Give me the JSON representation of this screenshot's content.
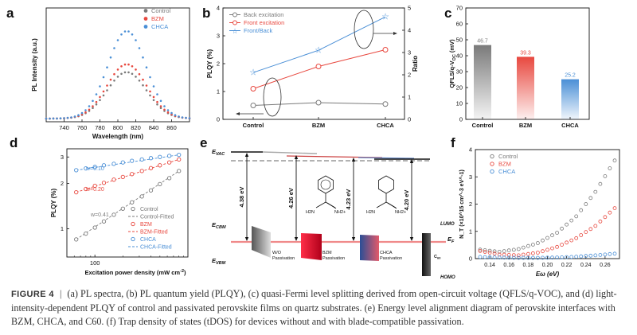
{
  "figure": {
    "label": "FIGURE 4",
    "caption": "(a) PL spectra, (b) PL quantum yield (PLQY), (c) quasi-Fermi level splitting derived from open-circuit voltage (QFLS/q-VOC), and (d) light-intensity-dependent PLQY of control and passivated perovskite films on quartz substrates. (e) Energy level alignment diagram of perovskite interfaces with BZM, CHCA, and C60. (f) Trap density of states (tDOS) for devices without and with blade-compatible passivation."
  },
  "colors": {
    "control": "#7a7a7a",
    "bzm": "#e8483f",
    "chca": "#4a8fd6"
  },
  "chart_data": [
    {
      "panel": "a",
      "type": "line",
      "title": "",
      "xlabel": "Wavelength (nm)",
      "ylabel": "PL Intensity (a.u.)",
      "xlim": [
        720,
        880
      ],
      "xticks": [
        740,
        760,
        780,
        800,
        820,
        840,
        860
      ],
      "legend": [
        "Control",
        "BZM",
        "CHCA"
      ],
      "series": [
        {
          "name": "Control",
          "peak_nm": 810,
          "peak_rel": 0.53,
          "fwhm_nm": 52
        },
        {
          "name": "BZM",
          "peak_nm": 810,
          "peak_rel": 0.62,
          "fwhm_nm": 52
        },
        {
          "name": "CHCA",
          "peak_nm": 810,
          "peak_rel": 1.0,
          "fwhm_nm": 50
        }
      ]
    },
    {
      "panel": "b",
      "type": "line",
      "categories": [
        "Control",
        "BZM",
        "CHCA"
      ],
      "ylabel": "PLQY (%)",
      "ylim": [
        0,
        4
      ],
      "yticks": [
        0,
        1,
        2,
        3,
        4
      ],
      "y2label": "Ratio",
      "y2lim": [
        0,
        5
      ],
      "y2ticks": [
        0,
        1,
        2,
        3,
        4,
        5
      ],
      "series": [
        {
          "name": "Back excitation",
          "axis": "left",
          "values": [
            0.5,
            0.6,
            0.55
          ]
        },
        {
          "name": "Front excitation",
          "axis": "left",
          "values": [
            1.1,
            1.9,
            2.5
          ]
        },
        {
          "name": "Front/Back",
          "axis": "right",
          "values": [
            2.1,
            3.1,
            4.6
          ]
        }
      ]
    },
    {
      "panel": "c",
      "type": "bar",
      "categories": [
        "Control",
        "BZM",
        "CHCA"
      ],
      "values": [
        46.7,
        39.3,
        25.2
      ],
      "labels": [
        "46.7",
        "39.3",
        "25.2"
      ],
      "ylabel_main": "QFLS/q-V",
      "ylabel_sub": "OC",
      "ylabel_unit": " (mV)",
      "ylim": [
        0,
        70
      ],
      "yticks": [
        0,
        10,
        20,
        30,
        40,
        50,
        60,
        70
      ]
    },
    {
      "panel": "d",
      "type": "scatter",
      "xlabel": "Excitation power density (mW cm",
      "xlabel_sup": "-2",
      "xlabel_end": ")",
      "ylabel": "PLQY (%)",
      "xscale": "log",
      "xlim": [
        50,
        1000
      ],
      "xticks": [
        100
      ],
      "xticklabels": [
        "100"
      ],
      "yscale": "log",
      "ylim": [
        0.65,
        3.4
      ],
      "yticks": [
        1,
        2,
        3
      ],
      "yticklabels": [
        "1",
        "2",
        "3"
      ],
      "annotations": [
        "w=0.10",
        "w=0.20",
        "w=0.41"
      ],
      "legend": [
        "Control",
        "Control-Fitted",
        "BZM",
        "BZM-Fitted",
        "CHCA",
        "CHCA-Fitted"
      ],
      "series": [
        {
          "name": "Control",
          "x": [
            63,
            80,
            100,
            125,
            160,
            200,
            250,
            320,
            400,
            500,
            630,
            800
          ],
          "values": [
            0.85,
            0.93,
            1.02,
            1.12,
            1.24,
            1.36,
            1.5,
            1.64,
            1.8,
            1.98,
            2.17,
            2.42
          ]
        },
        {
          "name": "BZM",
          "x": [
            63,
            80,
            100,
            125,
            160,
            200,
            250,
            320,
            400,
            500,
            630,
            800
          ],
          "values": [
            1.75,
            1.84,
            1.93,
            2.02,
            2.12,
            2.21,
            2.31,
            2.42,
            2.53,
            2.64,
            2.76,
            2.89
          ]
        },
        {
          "name": "CHCA",
          "x": [
            63,
            80,
            100,
            125,
            160,
            200,
            250,
            320,
            400,
            500,
            630,
            800
          ],
          "values": [
            2.45,
            2.52,
            2.58,
            2.64,
            2.7,
            2.76,
            2.83,
            2.89,
            2.95,
            3.0,
            3.05,
            3.1
          ]
        }
      ]
    },
    {
      "panel": "e",
      "type": "diagram",
      "levels": [
        "E_VAC",
        "E_CBM",
        "E_VBM",
        "E_F",
        "LUMO",
        "HOMO"
      ],
      "gaps": [
        "4.38 eV",
        "4.26 eV",
        "4.23 eV",
        "4.20 eV"
      ],
      "boxes": [
        "W/O Passivation",
        "BZM Passivation",
        "CHCA Passivation",
        "C60"
      ],
      "molecule_labels": [
        "H2N",
        "NH2+",
        "H2N",
        "NH2+"
      ]
    },
    {
      "panel": "f",
      "type": "scatter",
      "xlabel": "Eω (eV)",
      "ylabel": "N_T (×10^15 cm^-3 eV^-1)",
      "xlim": [
        0.125,
        0.275
      ],
      "xticks": [
        0.14,
        0.16,
        0.18,
        0.2,
        0.22,
        0.24,
        0.26
      ],
      "ylim": [
        0,
        4
      ],
      "yticks": [
        0,
        1,
        2,
        3,
        4
      ],
      "legend": [
        "Control",
        "BZM",
        "CHCA"
      ],
      "series": [
        {
          "name": "Control",
          "x": [
            0.13,
            0.15,
            0.17,
            0.19,
            0.21,
            0.23,
            0.25,
            0.27
          ],
          "values": [
            0.33,
            0.25,
            0.35,
            0.57,
            0.95,
            1.55,
            2.45,
            3.6
          ]
        },
        {
          "name": "BZM",
          "x": [
            0.13,
            0.15,
            0.17,
            0.19,
            0.21,
            0.23,
            0.25,
            0.27
          ],
          "values": [
            0.28,
            0.15,
            0.12,
            0.22,
            0.43,
            0.75,
            1.2,
            1.85
          ]
        },
        {
          "name": "CHCA",
          "x": [
            0.13,
            0.15,
            0.17,
            0.19,
            0.21,
            0.23,
            0.25,
            0.27
          ],
          "values": [
            0.06,
            0.04,
            0.03,
            0.03,
            0.04,
            0.07,
            0.12,
            0.18
          ]
        }
      ]
    }
  ]
}
